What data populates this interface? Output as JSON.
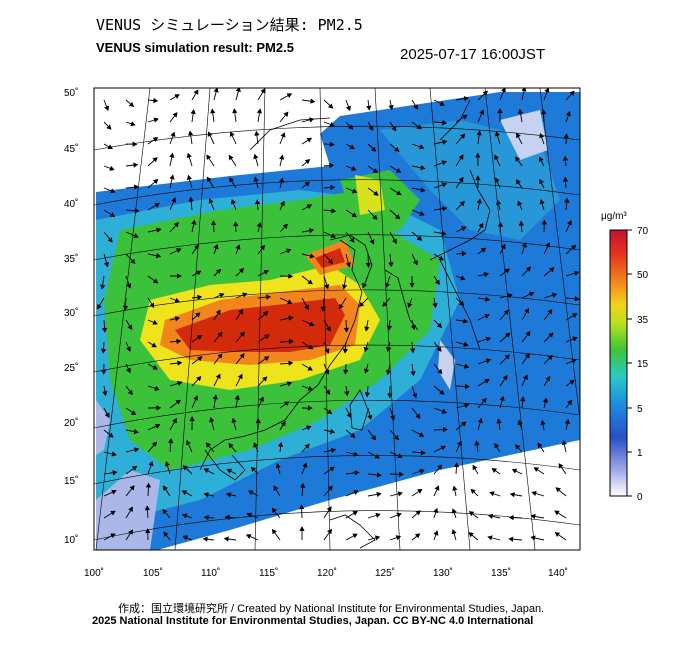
{
  "header": {
    "title_jp": "VENUS シミュレーション結果: PM2.5",
    "title_en": "VENUS simulation result: PM2.5",
    "timestamp": "2025-07-17 16:00JST"
  },
  "map": {
    "lat_labels": [
      "50˚",
      "45˚",
      "40˚",
      "35˚",
      "30˚",
      "25˚",
      "20˚",
      "15˚",
      "10˚"
    ],
    "lon_labels": [
      "100˚",
      "105˚",
      "110˚",
      "115˚",
      "120˚",
      "125˚",
      "130˚",
      "135˚",
      "140˚"
    ],
    "colors": {
      "very_high": "#d42a0c",
      "high": "#f2861d",
      "mid": "#f4e51b",
      "green": "#36c23a",
      "cyan": "#20bcd6",
      "blue": "#1870d8",
      "low": "#a9b8e8"
    }
  },
  "colorbar": {
    "unit": "μg/m³",
    "ticks": [
      "70",
      "50",
      "35",
      "15",
      "5",
      "1",
      "0"
    ],
    "colors": [
      "#c8102e",
      "#e63a1c",
      "#f38a1f",
      "#f2d21b",
      "#b9e21d",
      "#3ec43a",
      "#2cc9c4",
      "#1c8fe0",
      "#2a4fc8",
      "#9ea8e6",
      "#ffffff"
    ]
  },
  "footer": {
    "credit_line1": "作成：国立環境研究所 / Created by National Institute for Environmental Studies, Japan.",
    "credit_line2": "2025 National Institute for Environmental Studies, Japan. CC BY-NC 4.0 International"
  }
}
